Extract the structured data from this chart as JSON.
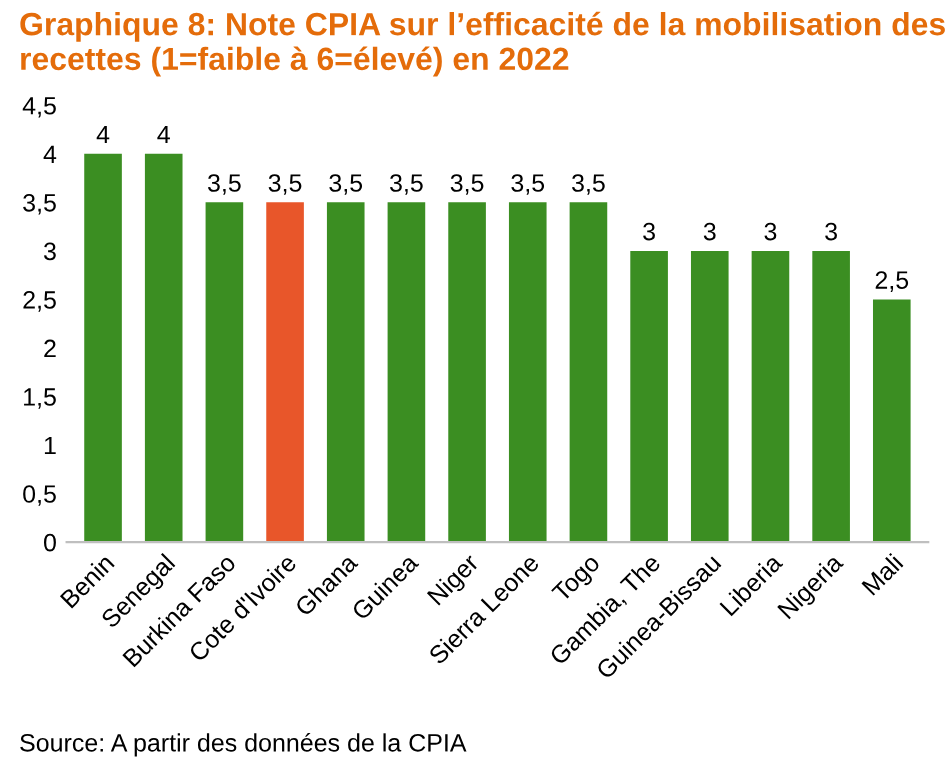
{
  "chart_data": {
    "type": "bar",
    "title": "Graphique 8: Note CPIA sur l’efficacité de la mobilisation des recettes (1=faible à 6=élevé) en 2022",
    "categories": [
      "Benin",
      "Senegal",
      "Burkina Faso",
      "Cote d'Ivoire",
      "Ghana",
      "Guinea",
      "Niger",
      "Sierra Leone",
      "Togo",
      "Gambia, The",
      "Guinea-Bissau",
      "Liberia",
      "Nigeria",
      "Mali"
    ],
    "values": [
      4,
      4,
      3.5,
      3.5,
      3.5,
      3.5,
      3.5,
      3.5,
      3.5,
      3,
      3,
      3,
      3,
      2.5
    ],
    "colors": [
      "#3b8e22",
      "#3b8e22",
      "#3b8e22",
      "#e8562a",
      "#3b8e22",
      "#3b8e22",
      "#3b8e22",
      "#3b8e22",
      "#3b8e22",
      "#3b8e22",
      "#3b8e22",
      "#3b8e22",
      "#3b8e22",
      "#3b8e22"
    ],
    "value_labels": [
      "4",
      "4",
      "3,5",
      "3,5",
      "3,5",
      "3,5",
      "3,5",
      "3,5",
      "3,5",
      "3",
      "3",
      "3",
      "3",
      "2,5"
    ],
    "ylim": [
      0,
      4.5
    ],
    "yticks": [
      0,
      {
        "value": 0.5,
        "label": "0,5"
      },
      1,
      {
        "value": 1.5,
        "label": "1,5"
      },
      2,
      {
        "value": 2.5,
        "label": "2,5"
      },
      3,
      {
        "value": 3.5,
        "label": "3,5"
      },
      4,
      {
        "value": 4.5,
        "label": "4,5"
      }
    ],
    "grid": false,
    "annotations": [
      "Source: A partir des données de la CPIA"
    ]
  }
}
